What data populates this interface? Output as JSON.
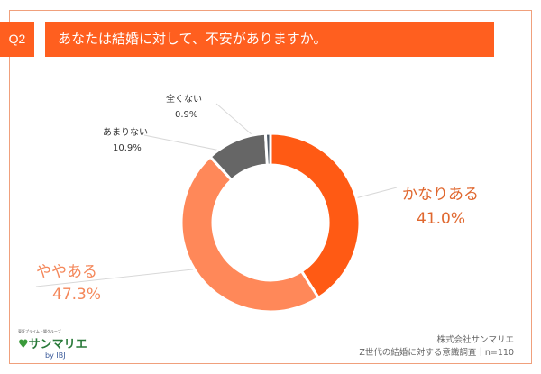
{
  "header": {
    "question_no": "Q2",
    "question": "あなたは結婚に対して、不安がありますか。"
  },
  "chart_data": {
    "type": "pie",
    "donut": true,
    "start": "top, clockwise",
    "categories": [
      "かなりある",
      "ややある",
      "あまりない",
      "全くない"
    ],
    "values": [
      41.0,
      47.3,
      10.9,
      0.9
    ],
    "labels": [
      "41.0%",
      "47.3%",
      "10.9%",
      "0.9%"
    ],
    "colors": [
      "#ff5a14",
      "#ff8859",
      "#666666",
      "#4d5966"
    ]
  },
  "footer": {
    "company": "株式会社サンマリエ",
    "survey": "Z世代の結婚に対する意識調査｜n=110",
    "logo_tag": "東証プライム上場グループ",
    "logo_brand": "サンマリエ",
    "logo_by": "by IBJ"
  }
}
